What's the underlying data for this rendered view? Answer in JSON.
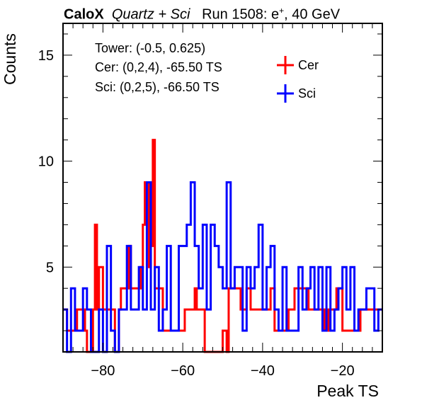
{
  "header": {
    "brand": "CaloX",
    "detectors": "Quartz + Sci",
    "run_prefix": "Run 1508: e",
    "run_sup": "+",
    "run_suffix": ", 40 GeV"
  },
  "info": {
    "tower": "Tower: (-0.5, 0.625)",
    "cer": "Cer: (0,2,4), -65.50 TS",
    "sci": "Sci: (0,2,5), -66.50 TS"
  },
  "chart_data": {
    "type": "histogram",
    "xlabel": "Peak TS",
    "ylabel": "Counts",
    "xlim": [
      -90,
      -10
    ],
    "ylim": [
      1,
      16.5
    ],
    "bin_width": 1,
    "x_ticks": [
      "−80",
      "−60",
      "−40",
      "−20"
    ],
    "y_ticks": [
      "5",
      "10",
      "15"
    ],
    "legend_position": "top-right",
    "series": [
      {
        "name": "Cer",
        "color": "#ff0000",
        "x_start": -90,
        "values": [
          3,
          3,
          2,
          2,
          2,
          2,
          2,
          3,
          3,
          3,
          3,
          2,
          1,
          1,
          1,
          3,
          7,
          3,
          5,
          5,
          3,
          3,
          3,
          3,
          3,
          3,
          1,
          1,
          3,
          4,
          4,
          4,
          4,
          6,
          4,
          4,
          4,
          4,
          4,
          5,
          7,
          9,
          9,
          5,
          6,
          11,
          4,
          4,
          4,
          4,
          2,
          2,
          2,
          2,
          2,
          2,
          2,
          2,
          2,
          2,
          2,
          3,
          3,
          3,
          3,
          3,
          4,
          3,
          3,
          3,
          3,
          1,
          1,
          1,
          1,
          1,
          1,
          1,
          1,
          1,
          2,
          2,
          1,
          4,
          4,
          4,
          4,
          4,
          4,
          3,
          3,
          3,
          4,
          4,
          3,
          3,
          3,
          3,
          3,
          3,
          3,
          3,
          3,
          3,
          4,
          4,
          2,
          2,
          2,
          2,
          2,
          2,
          2,
          3,
          3,
          3,
          4,
          4,
          4,
          4,
          4,
          4,
          4,
          3,
          3,
          3,
          3,
          3,
          3,
          3,
          3,
          2,
          2,
          3,
          3,
          3,
          3,
          4,
          4,
          4,
          2,
          2,
          2,
          2,
          2,
          2,
          2,
          2,
          2,
          3,
          3,
          3,
          3,
          3,
          3,
          3,
          3,
          3,
          3,
          3
        ]
      },
      {
        "name": "Sci",
        "color": "#0000ff",
        "x_start": -90,
        "values": [
          3,
          3,
          1,
          1,
          4,
          4,
          2,
          2,
          2,
          2,
          4,
          4,
          3,
          3,
          1,
          1,
          1,
          1,
          3,
          3,
          1,
          1,
          6,
          6,
          2,
          2,
          1,
          1,
          3,
          3,
          3,
          3,
          6,
          6,
          3,
          3,
          3,
          3,
          5,
          5,
          3,
          3,
          9,
          9,
          3,
          3,
          5,
          5,
          2,
          2,
          3,
          3,
          6,
          6,
          2,
          2,
          2,
          2,
          6,
          6,
          6,
          6,
          7,
          7,
          9,
          9,
          6,
          6,
          4,
          4,
          7,
          7,
          3,
          3,
          7,
          7,
          6,
          6,
          5,
          5,
          4,
          4,
          9,
          9,
          4,
          4,
          5,
          5,
          5,
          5,
          2,
          2,
          5,
          5,
          4,
          4,
          5,
          5,
          7,
          7,
          3,
          3,
          5,
          5,
          6,
          6,
          3,
          3,
          2,
          2,
          5,
          5,
          2,
          2,
          2,
          2,
          2,
          2,
          5,
          5,
          3,
          3,
          4,
          4,
          5,
          5,
          3,
          3,
          5,
          5,
          2,
          2,
          5,
          5,
          2,
          2,
          3,
          3,
          4,
          4,
          5,
          5,
          3,
          3,
          5,
          5,
          2,
          2,
          3,
          3,
          3,
          3,
          4,
          4,
          4,
          4,
          2,
          2,
          3,
          3
        ]
      }
    ]
  }
}
